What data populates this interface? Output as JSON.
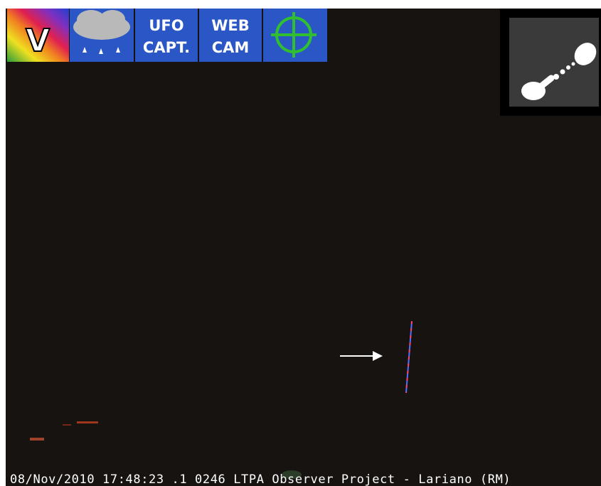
{
  "icons": {
    "logo": "V",
    "ufo_capture": [
      "UFO",
      "CAPT."
    ],
    "webcam": [
      "WEB",
      "CAM"
    ]
  },
  "caption": "08/Nov/2010 17:48:23 .1 0246 LTPA Observer Project - Lariano (RM)"
}
